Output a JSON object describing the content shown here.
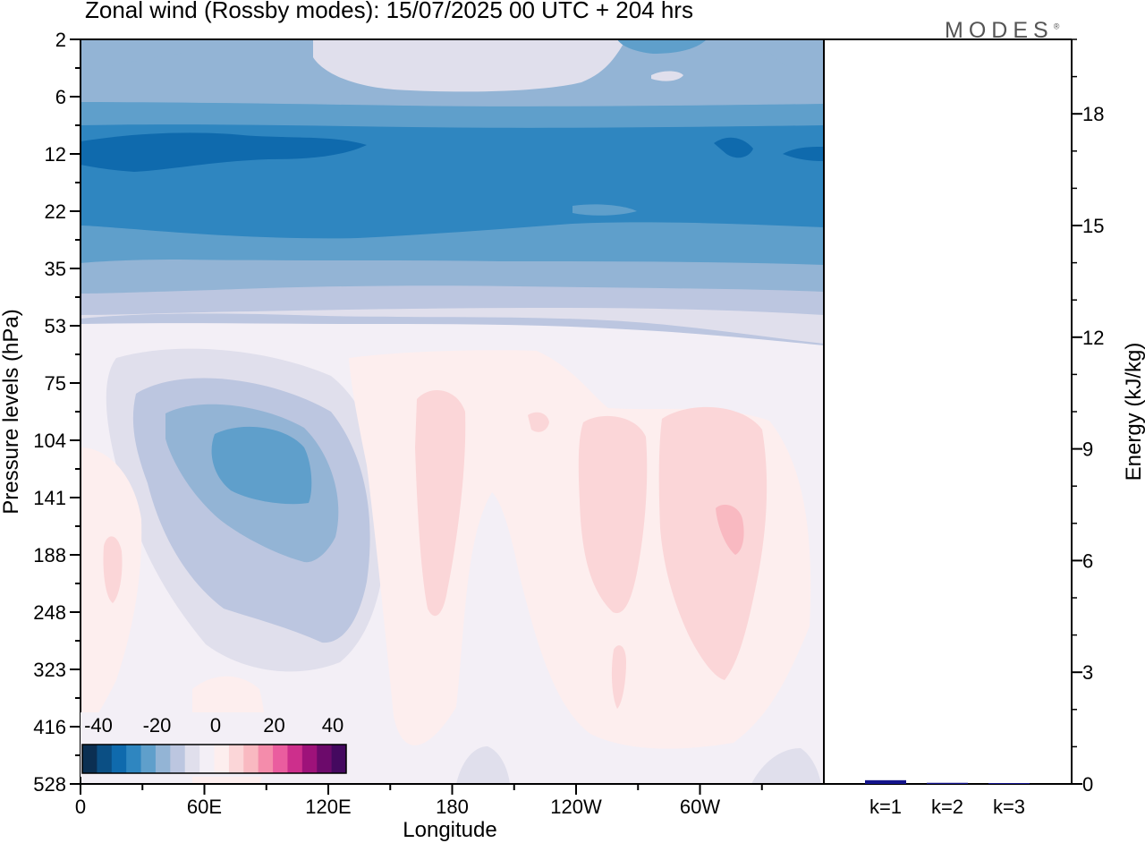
{
  "title": "Zonal wind (Rossby modes):  15/07/2025  00 UTC  + 204 hrs",
  "logo": "MODES",
  "chart_data": [
    {
      "type": "heatmap",
      "xlabel": "Longitude",
      "ylabel": "Pressure levels (hPa)",
      "x_ticks": [
        "0",
        "60E",
        "120E",
        "180",
        "120W",
        "60W"
      ],
      "y_ticks": [
        "2",
        "6",
        "12",
        "22",
        "35",
        "53",
        "75",
        "104",
        "141",
        "188",
        "248",
        "323",
        "416",
        "528"
      ],
      "colorbar": {
        "tick_labels": [
          "-40",
          "-20",
          "0",
          "20",
          "40"
        ],
        "colors": [
          "#0b2f52",
          "#0b4f84",
          "#0f6aad",
          "#2f86c0",
          "#5f9fcb",
          "#93b4d5",
          "#bcc6e0",
          "#e0dfec",
          "#f3eff6",
          "#fdeeee",
          "#fbd6d8",
          "#f9b9c1",
          "#f48cab",
          "#ea5d9f",
          "#cd2f8c",
          "#9e127a",
          "#6c0a6b",
          "#44095f"
        ]
      }
    },
    {
      "type": "bar",
      "categories": [
        "k=1",
        "k=2",
        "k=3"
      ],
      "values": [
        0.1,
        0.03,
        0.02
      ],
      "ylabel": "Energy (kJ/kg)",
      "ylim": [
        0,
        20
      ],
      "y_ticks": [
        "0",
        "3",
        "6",
        "9",
        "12",
        "15",
        "18"
      ],
      "bar_color": "#14148c"
    }
  ]
}
